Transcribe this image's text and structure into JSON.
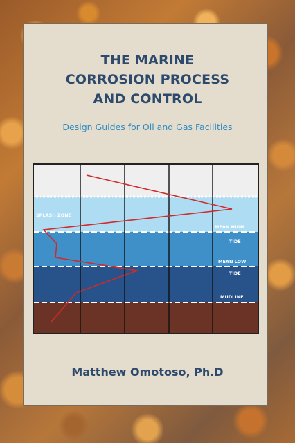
{
  "cover": {
    "title_lines": [
      "THE MARINE",
      "CORROSION PROCESS",
      "AND CONTROL"
    ],
    "subtitle": "Design Guides for Oil and Gas Facilities",
    "author": "Matthew Omotoso, Ph.D"
  },
  "diagram": {
    "zones": {
      "splash": "SPLASH ZONE",
      "mean_high_1": "MEAN HIGH",
      "mean_high_2": "TIDE",
      "mean_low_1": "MEAN LOW",
      "mean_low_2": "TIDE",
      "mudline": "MUDLINE"
    },
    "colors": {
      "atmosphere": "#efefef",
      "splash": "#aedcf3",
      "intertidal": "#3f8fc9",
      "submerged": "#27528a",
      "mud": "#6b3326",
      "corrosion_line": "#d02a2a"
    }
  }
}
